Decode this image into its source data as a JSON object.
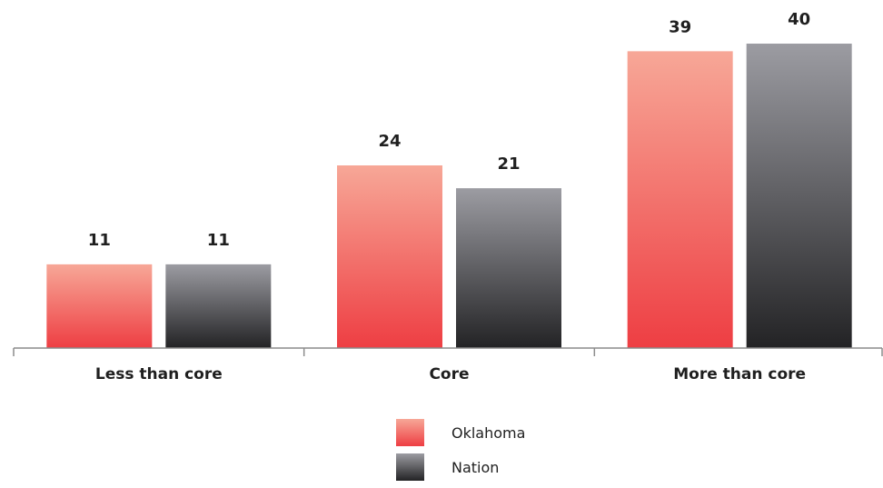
{
  "chart_data": {
    "type": "bar",
    "categories": [
      "Less than core",
      "Core",
      "More than core"
    ],
    "series": [
      {
        "name": "Oklahoma",
        "values": [
          11,
          24,
          39
        ],
        "color_top": "#f7a797",
        "color_bottom": "#ee3e43"
      },
      {
        "name": "Nation",
        "values": [
          11,
          21,
          40
        ],
        "color_top": "#9c9ca2",
        "color_bottom": "#232325"
      }
    ],
    "ylim": [
      0,
      40
    ],
    "grid": false,
    "legend_position": "bottom"
  }
}
